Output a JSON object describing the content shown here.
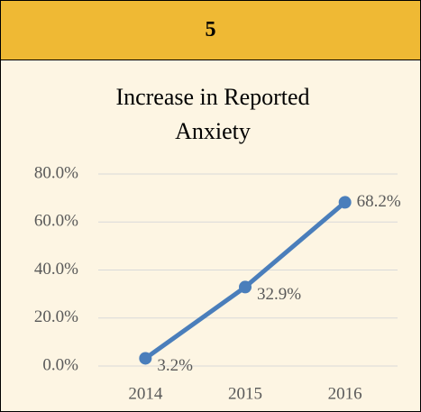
{
  "header": {
    "number": "5"
  },
  "chart_data": {
    "type": "line",
    "title": "Increase in Reported Anxiety",
    "categories": [
      "2014",
      "2015",
      "2016"
    ],
    "series": [
      {
        "name": "Reported Anxiety",
        "color": "#4a7ebb",
        "values": [
          3.2,
          32.9,
          68.2
        ],
        "value_labels": [
          "3.2%",
          "32.9%",
          "68.2%"
        ]
      }
    ],
    "ylim": [
      0,
      80
    ],
    "yticks": [
      {
        "value": 0,
        "label": "0.0%"
      },
      {
        "value": 20,
        "label": "20.0%"
      },
      {
        "value": 40,
        "label": "40.0%"
      },
      {
        "value": 60,
        "label": "60.0%"
      },
      {
        "value": 80,
        "label": "80.0%"
      }
    ],
    "grid": true,
    "legend": false
  }
}
